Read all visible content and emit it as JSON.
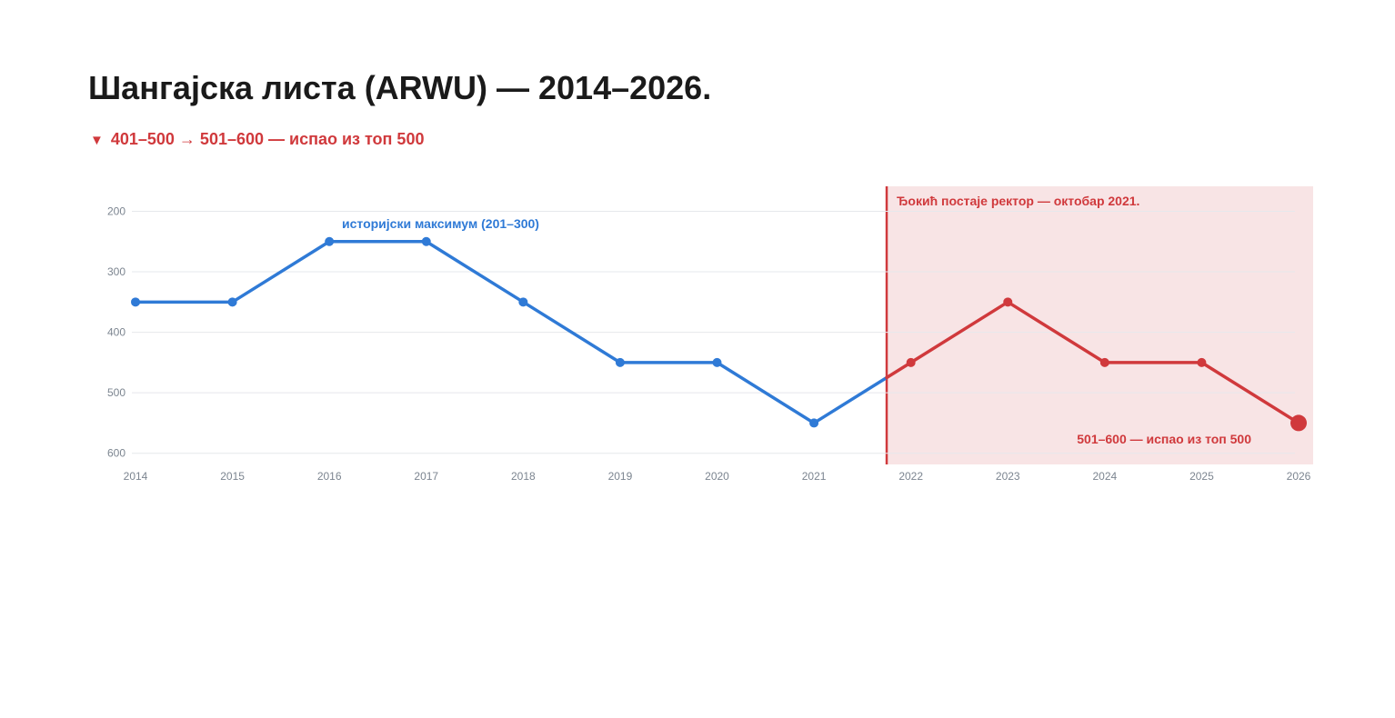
{
  "title": "Шангајска листа (ARWU) — 2014–2026.",
  "subtitle": {
    "marker": "▼",
    "text": "401–500 → 501–600 — испао из топ 500"
  },
  "colors": {
    "before": "#2f7ad6",
    "after": "#d0393c",
    "highlight_fill": "#f8e4e5"
  },
  "chart_data": {
    "type": "line",
    "x": [
      2014,
      2015,
      2016,
      2017,
      2018,
      2019,
      2020,
      2021,
      2022,
      2023,
      2024,
      2025,
      2026
    ],
    "y": [
      350,
      350,
      250,
      250,
      350,
      450,
      450,
      550,
      450,
      350,
      450,
      450,
      550
    ],
    "y_axis_inverted": true,
    "yticks": [
      200,
      300,
      400,
      500,
      600
    ],
    "xlim": [
      2014,
      2026
    ],
    "ylim": [
      160,
      620
    ],
    "grid": true,
    "highlight": {
      "from": 2021.75,
      "to": 2026.15,
      "label": "Ђокић постаје ректор — октобар 2021."
    },
    "annotations": [
      {
        "text": "историјски максимум (201–300)",
        "x": 2016,
        "y": 250
      },
      {
        "text": "501–600 — испао из топ 500",
        "x": 2026,
        "y": 550
      }
    ]
  }
}
